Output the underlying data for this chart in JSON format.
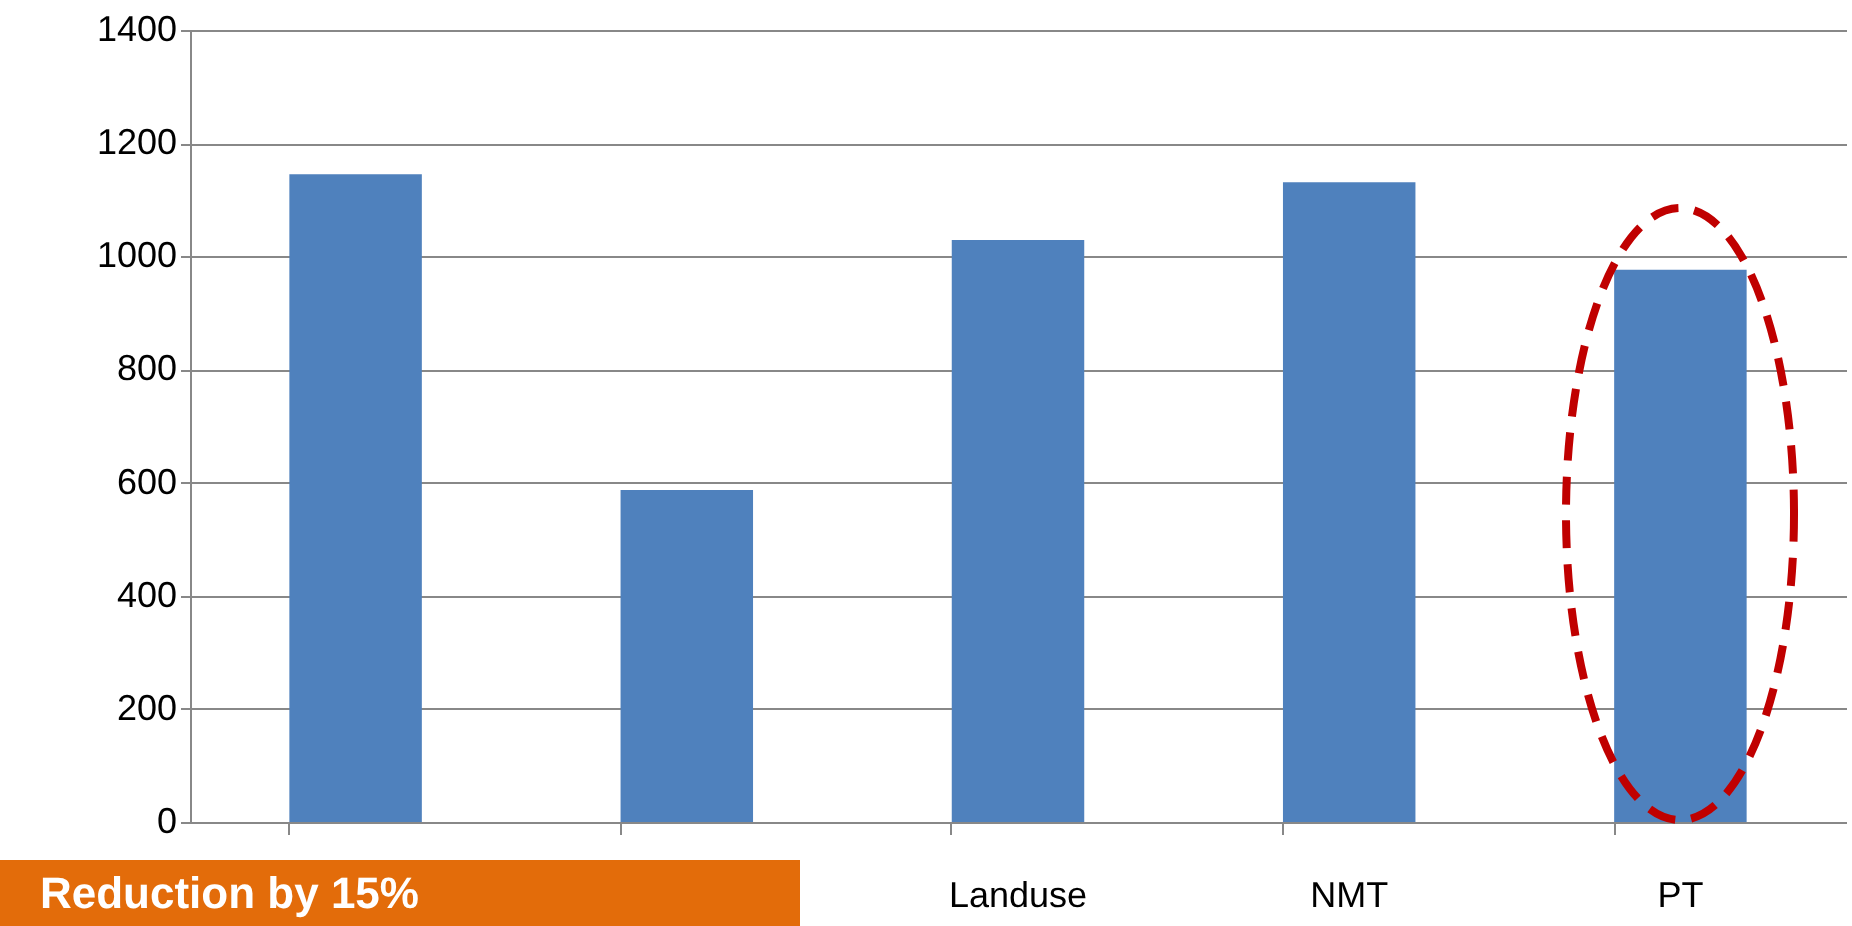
{
  "chart_data": {
    "type": "bar",
    "categories": [
      null,
      null,
      "Landuse",
      "NMT",
      "PT"
    ],
    "values": [
      1145,
      587,
      1029,
      1131,
      976
    ],
    "color": "#4f81bd",
    "ylim": [
      0,
      1400
    ],
    "yticks": [
      0,
      200,
      400,
      600,
      800,
      1000,
      1200,
      1400
    ],
    "grid": "y",
    "annotations": [
      "Reduction by 15%"
    ]
  }
}
